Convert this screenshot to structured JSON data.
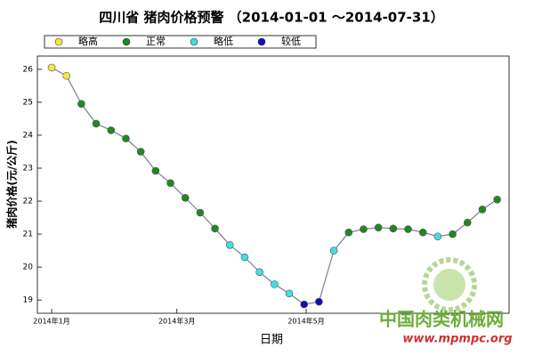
{
  "chart_data": {
    "type": "scatter",
    "title": "四川省 猪肉价格预警 （2014-01-01 ～2014-07-31）",
    "xlabel": "日期",
    "ylabel": "猪肉价格(元/公斤)",
    "legend": [
      {
        "name": "略高",
        "color": "#f5e642"
      },
      {
        "name": "正常",
        "color": "#1e8a1e"
      },
      {
        "name": "略低",
        "color": "#3ee0e0"
      },
      {
        "name": "较低",
        "color": "#1010b0"
      }
    ],
    "x": [
      0,
      1,
      2,
      3,
      4,
      5,
      6,
      7,
      8,
      9,
      10,
      11,
      12,
      13,
      14,
      15,
      16,
      17,
      18,
      19,
      20,
      21,
      22,
      23,
      24,
      25,
      26,
      27,
      28,
      29,
      30
    ],
    "values": [
      26.05,
      25.8,
      24.95,
      24.35,
      24.15,
      23.9,
      23.5,
      22.92,
      22.55,
      22.1,
      21.65,
      21.17,
      20.67,
      20.3,
      19.85,
      19.48,
      19.2,
      18.87,
      18.95,
      20.5,
      21.05,
      21.15,
      21.2,
      21.17,
      21.15,
      21.05,
      20.93,
      21.0,
      21.35,
      21.75,
      22.05
    ],
    "colors": [
      "#f5e642",
      "#f5e642",
      "#1e8a1e",
      "#1e8a1e",
      "#1e8a1e",
      "#1e8a1e",
      "#1e8a1e",
      "#1e8a1e",
      "#1e8a1e",
      "#1e8a1e",
      "#1e8a1e",
      "#1e8a1e",
      "#3ee0e0",
      "#3ee0e0",
      "#3ee0e0",
      "#3ee0e0",
      "#3ee0e0",
      "#1010b0",
      "#1010b0",
      "#3ee0e0",
      "#1e8a1e",
      "#1e8a1e",
      "#1e8a1e",
      "#1e8a1e",
      "#1e8a1e",
      "#1e8a1e",
      "#3ee0e0",
      "#1e8a1e",
      "#1e8a1e",
      "#1e8a1e",
      "#1e8a1e"
    ],
    "line_color": "#7a7aa0",
    "xlim": [
      -0.96,
      30.8
    ],
    "ylim": [
      18.6,
      26.4
    ],
    "xticks": [
      {
        "value": 0,
        "label": "2014年1月"
      },
      {
        "value": 8.43,
        "label": "2014年3月"
      },
      {
        "value": 17.14,
        "label": "2014年5月"
      }
    ],
    "yticks": [
      19,
      20,
      21,
      22,
      23,
      24,
      25,
      26
    ],
    "watermark": {
      "name": "中国肉类机械网",
      "url": "www.mpmpc.org"
    }
  }
}
